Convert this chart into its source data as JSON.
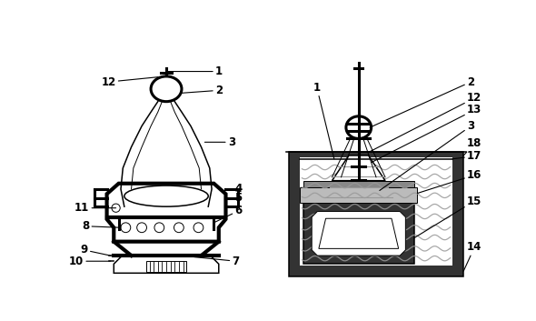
{
  "bg_color": "#ffffff",
  "line_color": "#000000",
  "dark_gray": "#333333",
  "mid_gray": "#888888",
  "light_gray": "#bbbbbb",
  "wave_color": "#999999",
  "figure_width": 5.9,
  "figure_height": 3.53,
  "dpi": 100
}
